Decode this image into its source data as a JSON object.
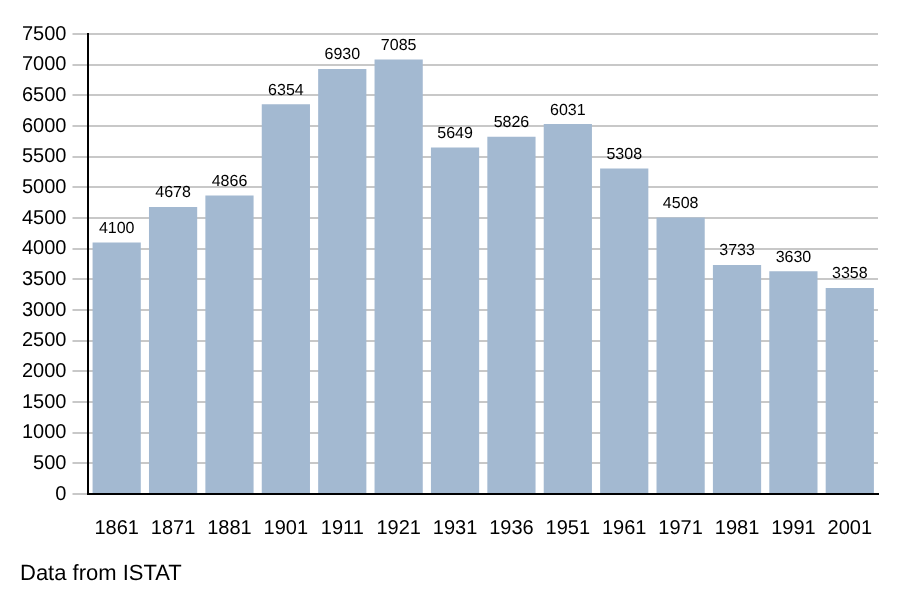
{
  "chart_data": {
    "type": "bar",
    "categories": [
      "1861",
      "1871",
      "1881",
      "1901",
      "1911",
      "1921",
      "1931",
      "1936",
      "1951",
      "1961",
      "1971",
      "1981",
      "1991",
      "2001"
    ],
    "values": [
      4100,
      4678,
      4866,
      6354,
      6930,
      7085,
      5649,
      5826,
      6031,
      5308,
      4508,
      3733,
      3630,
      3358
    ],
    "color": "#a3b9d1",
    "ylim": [
      0,
      7500
    ],
    "yticks": [
      0,
      500,
      1000,
      1500,
      2000,
      2500,
      3000,
      3500,
      4000,
      4500,
      5000,
      5500,
      6000,
      6500,
      7000,
      7500
    ],
    "grid": "y",
    "data_labels": true,
    "annotations": [
      "Data from ISTAT"
    ]
  }
}
